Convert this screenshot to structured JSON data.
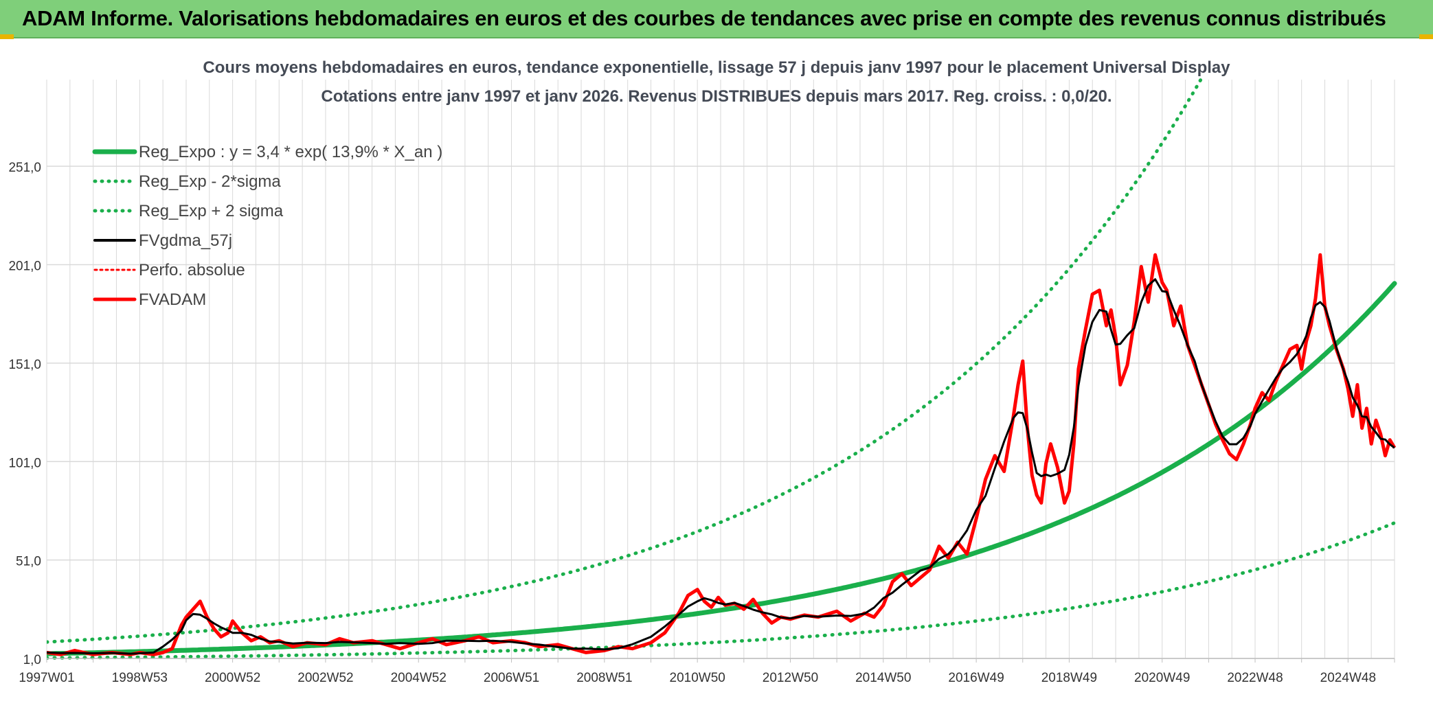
{
  "banner": {
    "title": "ADAM Informe. Valorisations hebdomadaires en euros et des courbes de tendances avec prise en compte des revenus connus distribués",
    "background": "#7fcf7a"
  },
  "chart_data": {
    "type": "line",
    "title": "Cours moyens hebdomadaires en euros, tendance exponentielle, lissage 57 j depuis janv 1997 pour le placement Universal Display",
    "subtitle": "Cotations entre janv 1997 et janv 2026. Revenus DISTRIBUES depuis mars 2017. Reg. croiss. : 0,0/20.",
    "xlabel": "",
    "ylabel": "",
    "xlim": [
      1997.0,
      2026.0
    ],
    "ylim": [
      1.0,
      295.0
    ],
    "grid": true,
    "legend_position": "top-left",
    "y_ticks": [
      {
        "value": 1.0,
        "label": "1,0"
      },
      {
        "value": 51.0,
        "label": "51,0"
      },
      {
        "value": 101.0,
        "label": "101,0"
      },
      {
        "value": 151.0,
        "label": "151,0"
      },
      {
        "value": 201.0,
        "label": "201,0"
      },
      {
        "value": 251.0,
        "label": "251,0"
      }
    ],
    "x_ticks": [
      {
        "value": 1997.0,
        "label": "1997W01"
      },
      {
        "value": 1999.0,
        "label": "1998W53"
      },
      {
        "value": 2001.0,
        "label": "2000W52"
      },
      {
        "value": 2003.0,
        "label": "2002W52"
      },
      {
        "value": 2005.0,
        "label": "2004W52"
      },
      {
        "value": 2007.0,
        "label": "2006W51"
      },
      {
        "value": 2009.0,
        "label": "2008W51"
      },
      {
        "value": 2011.0,
        "label": "2010W50"
      },
      {
        "value": 2013.0,
        "label": "2012W50"
      },
      {
        "value": 2015.0,
        "label": "2014W50"
      },
      {
        "value": 2017.0,
        "label": "2016W49"
      },
      {
        "value": 2019.0,
        "label": "2018W49"
      },
      {
        "value": 2021.0,
        "label": "2020W49"
      },
      {
        "value": 2023.0,
        "label": "2022W48"
      },
      {
        "value": 2025.0,
        "label": "2024W48"
      }
    ],
    "colors": {
      "green": "#1aaf4b",
      "black": "#000000",
      "red": "#ff0000",
      "grid": "#d9d9d9"
    },
    "series": [
      {
        "name": "Reg_Expo : y = 3,4 * exp( 13,9% *  X_an )",
        "kind": "expo",
        "color": "#1aaf4b",
        "style": "solid",
        "a": 3.4,
        "r": 0.139,
        "factor": 1.0
      },
      {
        "name": "Reg_Exp - 2*sigma",
        "kind": "expo",
        "color": "#1aaf4b",
        "style": "dotted",
        "a": 3.4,
        "r": 0.139,
        "factor": 0.365
      },
      {
        "name": "Reg_Exp + 2 sigma",
        "kind": "expo",
        "color": "#1aaf4b",
        "style": "dotted",
        "a": 3.4,
        "r": 0.139,
        "factor": 2.75
      },
      {
        "name": "FVgdma_57j",
        "kind": "points",
        "color": "#000000",
        "style": "solid",
        "smooth": true
      },
      {
        "name": "Perfo. absolue",
        "kind": "none",
        "color": "#ff0000",
        "style": "dotted"
      },
      {
        "name": "FVADAM",
        "kind": "points",
        "color": "#ff0000",
        "style": "solid",
        "x": [
          1997.0,
          1997.3,
          1997.6,
          1998.0,
          1998.4,
          1998.8,
          1999.0,
          1999.3,
          1999.5,
          1999.7,
          1999.9,
          2000.0,
          2000.15,
          2000.3,
          2000.45,
          2000.6,
          2000.75,
          2000.9,
          2001.0,
          2001.2,
          2001.4,
          2001.6,
          2001.8,
          2002.0,
          2002.3,
          2002.6,
          2003.0,
          2003.3,
          2003.6,
          2004.0,
          2004.3,
          2004.6,
          2005.0,
          2005.3,
          2005.6,
          2006.0,
          2006.3,
          2006.6,
          2007.0,
          2007.3,
          2007.6,
          2008.0,
          2008.3,
          2008.6,
          2009.0,
          2009.3,
          2009.6,
          2010.0,
          2010.3,
          2010.6,
          2010.8,
          2011.0,
          2011.15,
          2011.3,
          2011.45,
          2011.6,
          2011.8,
          2012.0,
          2012.2,
          2012.4,
          2012.6,
          2012.8,
          2013.0,
          2013.3,
          2013.6,
          2014.0,
          2014.3,
          2014.6,
          2014.8,
          2015.0,
          2015.2,
          2015.4,
          2015.6,
          2015.8,
          2016.0,
          2016.2,
          2016.4,
          2016.6,
          2016.8,
          2017.0,
          2017.2,
          2017.4,
          2017.6,
          2017.8,
          2017.9,
          2018.0,
          2018.1,
          2018.2,
          2018.3,
          2018.4,
          2018.5,
          2018.6,
          2018.75,
          2018.9,
          2019.0,
          2019.1,
          2019.2,
          2019.35,
          2019.5,
          2019.65,
          2019.8,
          2019.9,
          2020.0,
          2020.1,
          2020.25,
          2020.4,
          2020.55,
          2020.7,
          2020.85,
          2021.0,
          2021.1,
          2021.25,
          2021.4,
          2021.55,
          2021.7,
          2021.85,
          2022.0,
          2022.15,
          2022.3,
          2022.45,
          2022.6,
          2022.75,
          2022.9,
          2023.0,
          2023.15,
          2023.3,
          2023.45,
          2023.6,
          2023.75,
          2023.9,
          2024.0,
          2024.1,
          2024.2,
          2024.3,
          2024.4,
          2024.5,
          2024.6,
          2024.75,
          2024.9,
          2025.0,
          2025.1,
          2025.2,
          2025.3,
          2025.4,
          2025.5,
          2025.6,
          2025.7,
          2025.8,
          2025.9,
          2026.0
        ],
        "y": [
          4,
          3,
          5,
          3,
          4,
          3,
          4,
          3,
          4,
          6,
          18,
          22,
          26,
          30,
          22,
          16,
          12,
          14,
          20,
          14,
          10,
          12,
          9,
          10,
          7,
          9,
          8,
          11,
          9,
          10,
          8,
          6,
          9,
          11,
          8,
          10,
          12,
          9,
          10,
          9,
          7,
          8,
          6,
          4,
          5,
          7,
          6,
          9,
          14,
          24,
          33,
          36,
          30,
          27,
          32,
          28,
          29,
          26,
          31,
          24,
          19,
          22,
          21,
          23,
          22,
          25,
          20,
          24,
          22,
          28,
          40,
          44,
          38,
          42,
          46,
          58,
          52,
          60,
          54,
          72,
          92,
          104,
          96,
          124,
          140,
          152,
          118,
          94,
          84,
          80,
          100,
          110,
          98,
          80,
          86,
          110,
          148,
          168,
          186,
          188,
          170,
          178,
          164,
          140,
          150,
          172,
          200,
          182,
          206,
          192,
          188,
          170,
          180,
          160,
          150,
          140,
          130,
          120,
          112,
          105,
          102,
          110,
          120,
          128,
          136,
          132,
          142,
          150,
          158,
          160,
          148,
          162,
          170,
          184,
          206,
          180,
          170,
          158,
          148,
          138,
          124,
          140,
          118,
          128,
          110,
          122,
          115,
          104,
          112,
          108
        ]
      }
    ]
  }
}
